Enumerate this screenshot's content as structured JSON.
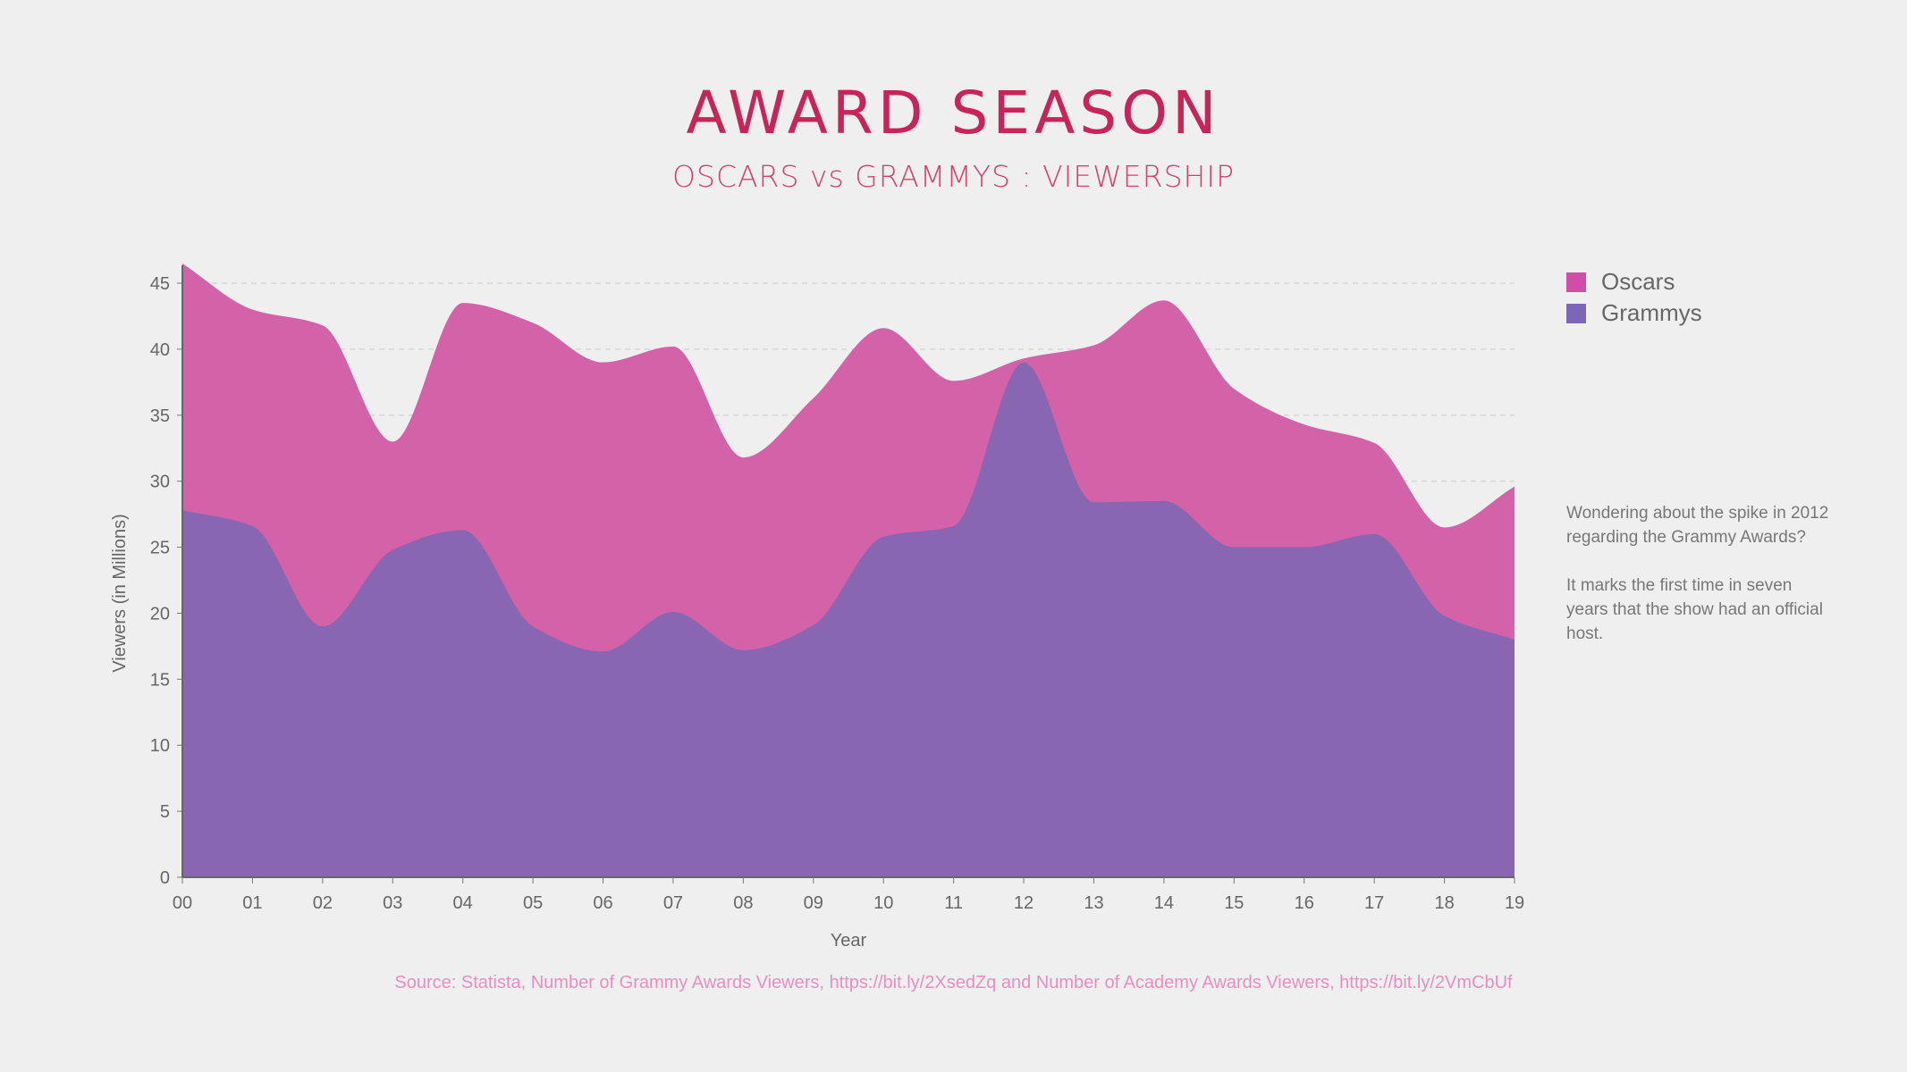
{
  "title": "AWARD SEASON",
  "subtitle": "OSCARS vs GRAMMYS : VIEWERSHIP",
  "annotation": {
    "line1": "Wondering about the spike in 2012 regarding the Grammy Awards?",
    "line2": "It marks the first time in seven years that the show had an official host."
  },
  "source": "Source: Statista, Number of Grammy Awards Viewers, https://bit.ly/2XsedZq and Number of Academy Awards Viewers, https://bit.ly/2VmCbUf",
  "chart_data": {
    "type": "area",
    "xlabel": "Year",
    "ylabel": "Viewers (in Millions)",
    "ylim": [
      0,
      45
    ],
    "yticks": [
      0,
      5,
      10,
      15,
      20,
      25,
      30,
      35,
      40,
      45
    ],
    "grid": true,
    "legend_placement": "right",
    "categories": [
      "00",
      "01",
      "02",
      "03",
      "04",
      "05",
      "06",
      "07",
      "08",
      "09",
      "10",
      "11",
      "12",
      "13",
      "14",
      "15",
      "16",
      "17",
      "18",
      "19"
    ],
    "series": [
      {
        "name": "Oscars",
        "color": "#d462a8",
        "values": [
          46.5,
          43,
          41.8,
          33,
          43.5,
          42,
          39,
          40.2,
          31.8,
          36.3,
          41.6,
          37.6,
          39.3,
          40.3,
          43.7,
          37,
          34.3,
          32.9,
          26.5,
          29.6
        ]
      },
      {
        "name": "Grammys",
        "color": "#8866b2",
        "values": [
          27.8,
          26.6,
          19,
          24.8,
          26.3,
          19,
          17.1,
          20.1,
          17.2,
          19.1,
          25.8,
          26.6,
          39,
          28.4,
          28.5,
          25,
          25,
          26,
          19.8,
          18
        ]
      }
    ]
  }
}
